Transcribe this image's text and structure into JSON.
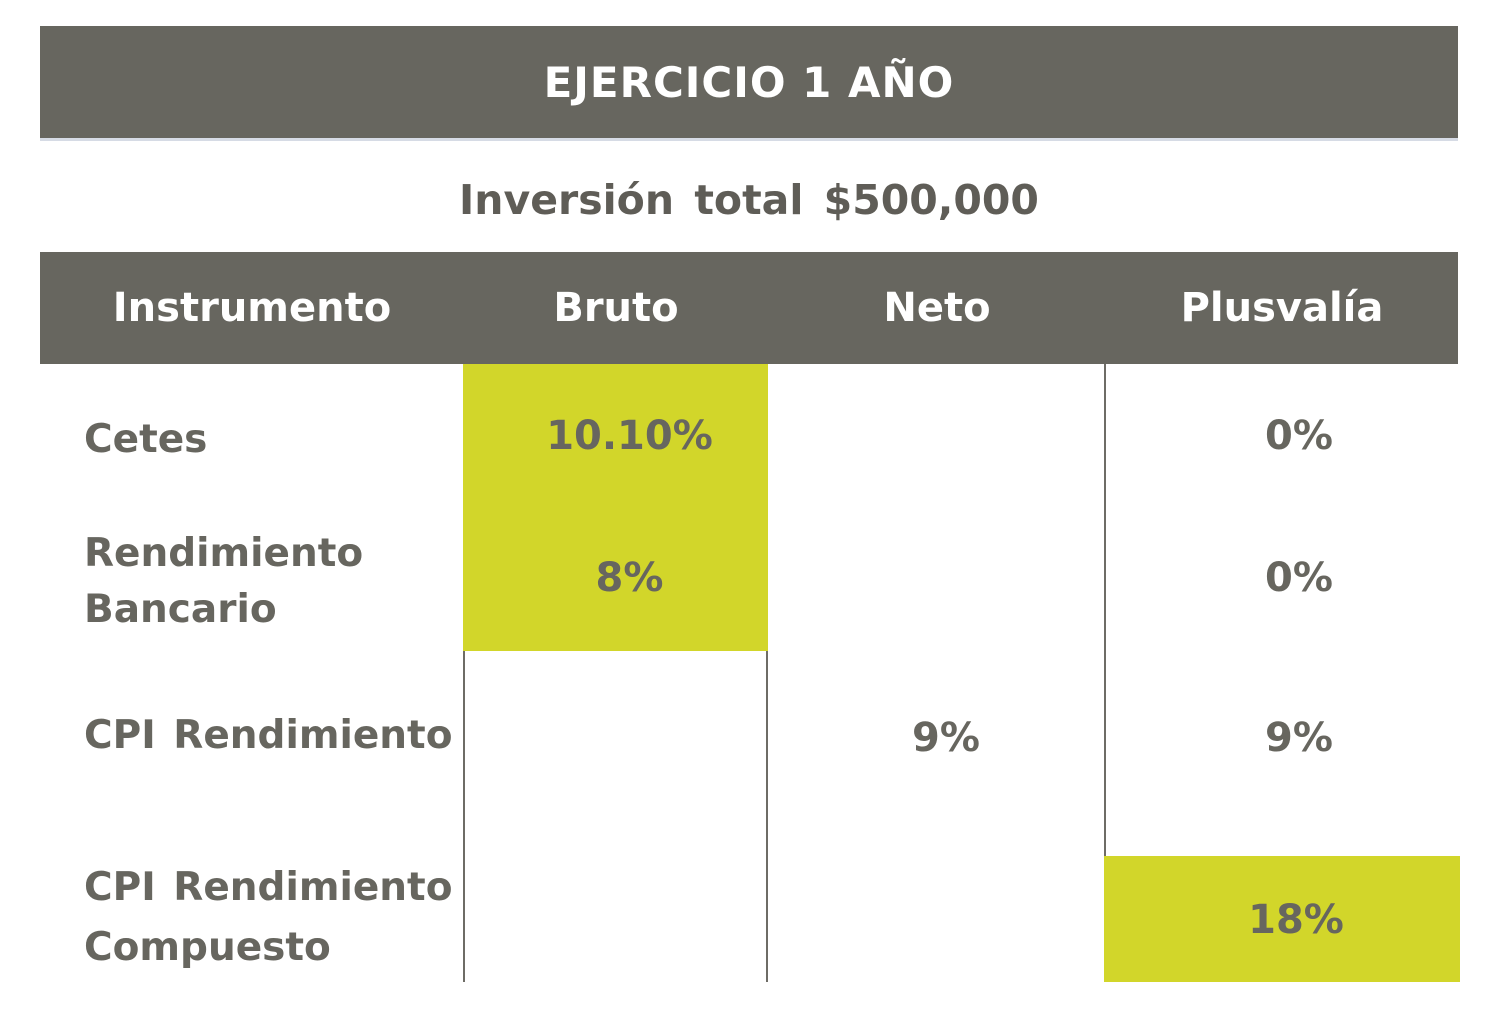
{
  "title": "EJERCICIO 1 AÑO",
  "subtitle": "Inversión total $500,000",
  "table": {
    "headers": {
      "instrumento": "Instrumento",
      "bruto": "Bruto",
      "neto": "Neto",
      "plusvalia": "Plusvalía"
    },
    "rows": [
      {
        "line1": "Cetes",
        "line2": "",
        "bruto": "10.10%",
        "neto": "",
        "plusvalia": "0%"
      },
      {
        "line1": "Rendimiento",
        "line2": "Bancario",
        "bruto": "8%",
        "neto": "",
        "plusvalia": "0%"
      },
      {
        "line1": "CPI Rendimiento",
        "line2": "",
        "bruto": "",
        "neto": "9%",
        "plusvalia": "9%"
      },
      {
        "line1": "CPI Rendimiento",
        "line2": "Compuesto",
        "bruto": "",
        "neto": "",
        "plusvalia": "18%"
      }
    ]
  },
  "colors": {
    "header_bg": "#67665f",
    "highlight": "#d2d62a",
    "text": "#67665f"
  }
}
